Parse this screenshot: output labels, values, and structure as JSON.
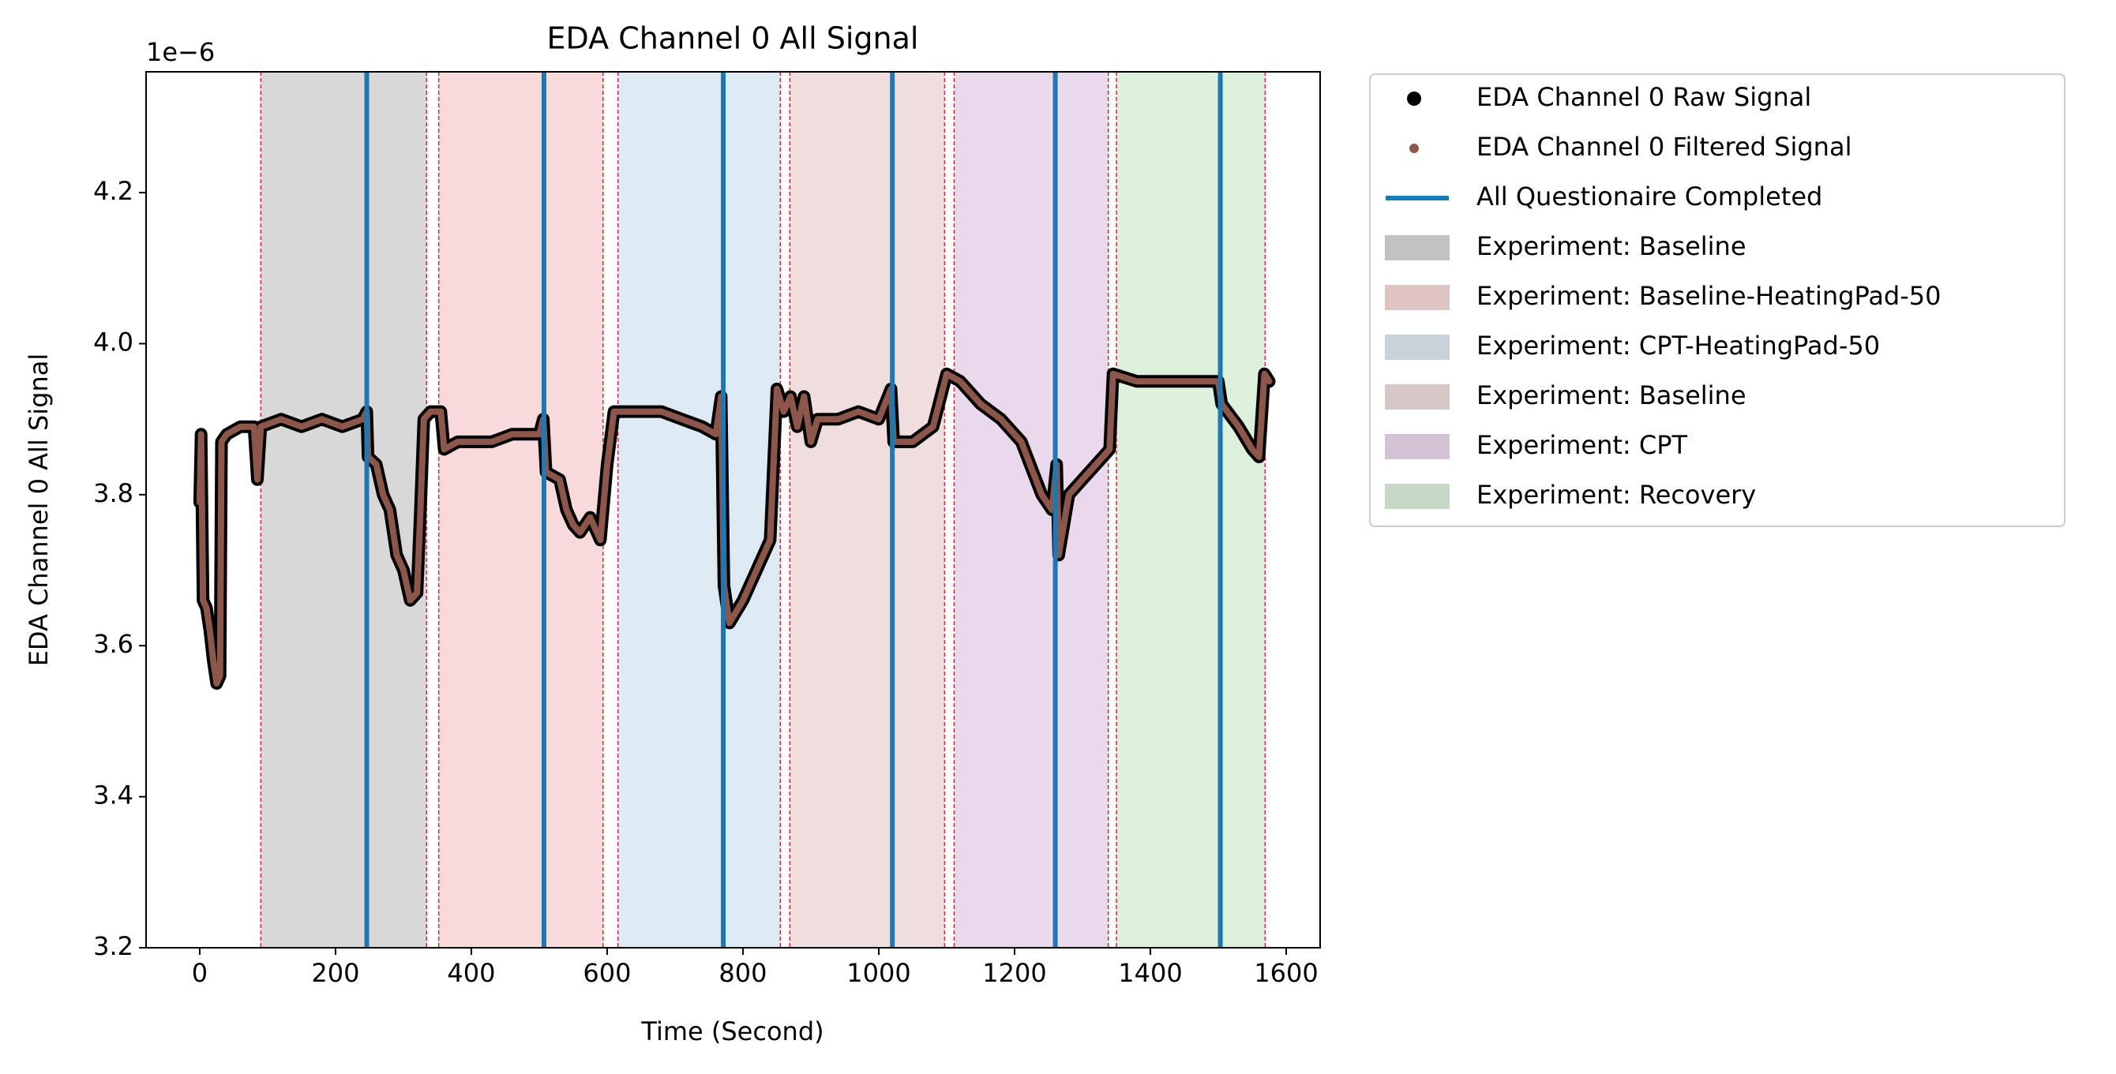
{
  "chart_data": {
    "type": "line",
    "title": "EDA Channel 0 All Signal",
    "xlabel": "Time (Second)",
    "ylabel": "EDA Channel 0 All Signal",
    "y_offset_label": "1e−6",
    "xlim": [
      -79,
      1650
    ],
    "ylim": [
      3.2,
      4.36
    ],
    "xticks": [
      0,
      200,
      400,
      600,
      800,
      1000,
      1200,
      1400,
      1600
    ],
    "yticks": [
      3.2,
      3.4,
      3.6,
      3.8,
      {
        "value": 4.0,
        "label": "4.0"
      },
      4.2
    ],
    "x": [
      0,
      2,
      5,
      10,
      15,
      20,
      25,
      30,
      32,
      40,
      60,
      80,
      85,
      90,
      120,
      150,
      180,
      210,
      240,
      246,
      248,
      260,
      270,
      280,
      290,
      300,
      310,
      320,
      325,
      330,
      340,
      355,
      360,
      380,
      400,
      430,
      460,
      500,
      506,
      510,
      530,
      540,
      550,
      560,
      575,
      590,
      600,
      610,
      640,
      680,
      710,
      740,
      760,
      768,
      772,
      780,
      800,
      820,
      840,
      850,
      860,
      870,
      880,
      890,
      900,
      910,
      940,
      970,
      1000,
      1018,
      1022,
      1050,
      1080,
      1100,
      1120,
      1150,
      1180,
      1210,
      1240,
      1255,
      1262,
      1265,
      1280,
      1300,
      1320,
      1340,
      1345,
      1380,
      1420,
      1460,
      1500,
      1505,
      1530,
      1550,
      1560,
      1568,
      1575
    ],
    "series": [
      {
        "name": "EDA Channel 0 Raw Signal",
        "color": "#000000",
        "values": [
          3.79,
          3.88,
          3.66,
          3.65,
          3.62,
          3.58,
          3.55,
          3.56,
          3.87,
          3.88,
          3.89,
          3.89,
          3.82,
          3.89,
          3.9,
          3.89,
          3.9,
          3.89,
          3.9,
          3.91,
          3.85,
          3.84,
          3.8,
          3.78,
          3.72,
          3.7,
          3.66,
          3.67,
          3.78,
          3.9,
          3.91,
          3.91,
          3.86,
          3.87,
          3.87,
          3.87,
          3.88,
          3.88,
          3.9,
          3.83,
          3.82,
          3.78,
          3.76,
          3.75,
          3.77,
          3.74,
          3.84,
          3.91,
          3.91,
          3.91,
          3.9,
          3.89,
          3.88,
          3.93,
          3.68,
          3.63,
          3.66,
          3.7,
          3.74,
          3.94,
          3.91,
          3.93,
          3.89,
          3.93,
          3.87,
          3.9,
          3.9,
          3.91,
          3.9,
          3.94,
          3.87,
          3.87,
          3.89,
          3.96,
          3.95,
          3.92,
          3.9,
          3.87,
          3.8,
          3.78,
          3.84,
          3.72,
          3.8,
          3.82,
          3.84,
          3.86,
          3.96,
          3.95,
          3.95,
          3.95,
          3.95,
          3.92,
          3.89,
          3.86,
          3.85,
          3.96,
          3.95
        ]
      },
      {
        "name": "EDA Channel 0 Filtered Signal",
        "color": "#8c564b",
        "values": [
          3.79,
          3.88,
          3.66,
          3.65,
          3.62,
          3.58,
          3.55,
          3.56,
          3.87,
          3.88,
          3.89,
          3.89,
          3.82,
          3.89,
          3.9,
          3.89,
          3.9,
          3.89,
          3.9,
          3.91,
          3.85,
          3.84,
          3.8,
          3.78,
          3.72,
          3.7,
          3.66,
          3.67,
          3.78,
          3.9,
          3.91,
          3.91,
          3.86,
          3.87,
          3.87,
          3.87,
          3.88,
          3.88,
          3.9,
          3.83,
          3.82,
          3.78,
          3.76,
          3.75,
          3.77,
          3.74,
          3.84,
          3.91,
          3.91,
          3.91,
          3.9,
          3.89,
          3.88,
          3.93,
          3.68,
          3.63,
          3.66,
          3.7,
          3.74,
          3.94,
          3.91,
          3.93,
          3.89,
          3.93,
          3.87,
          3.9,
          3.9,
          3.91,
          3.9,
          3.94,
          3.87,
          3.87,
          3.89,
          3.96,
          3.95,
          3.92,
          3.9,
          3.87,
          3.8,
          3.78,
          3.84,
          3.72,
          3.8,
          3.82,
          3.84,
          3.86,
          3.96,
          3.95,
          3.95,
          3.95,
          3.95,
          3.92,
          3.89,
          3.86,
          3.85,
          3.96,
          3.95
        ]
      }
    ],
    "vlines": {
      "name": "All Questionaire Completed",
      "color": "#1f77b4",
      "x": [
        246,
        507,
        771,
        1020,
        1260,
        1503
      ]
    },
    "span_edge_color": "#d62728",
    "spans": [
      {
        "name": "Experiment: Baseline",
        "color": "#d8d8d8",
        "start": 90,
        "end": 334
      },
      {
        "name": "Experiment: Baseline-HeatingPad-50",
        "color": "#f8dadb",
        "start": 352,
        "end": 594
      },
      {
        "name": "Experiment: CPT-HeatingPad-50",
        "color": "#dde9f3",
        "start": 616,
        "end": 855
      },
      {
        "name": "Experiment: Baseline",
        "color": "#efdedd",
        "start": 869,
        "end": 1097
      },
      {
        "name": "Experiment: CPT",
        "color": "#ead9ec",
        "start": 1111,
        "end": 1338
      },
      {
        "name": "Experiment: Recovery",
        "color": "#ddf0dc",
        "start": 1350,
        "end": 1569
      }
    ]
  }
}
